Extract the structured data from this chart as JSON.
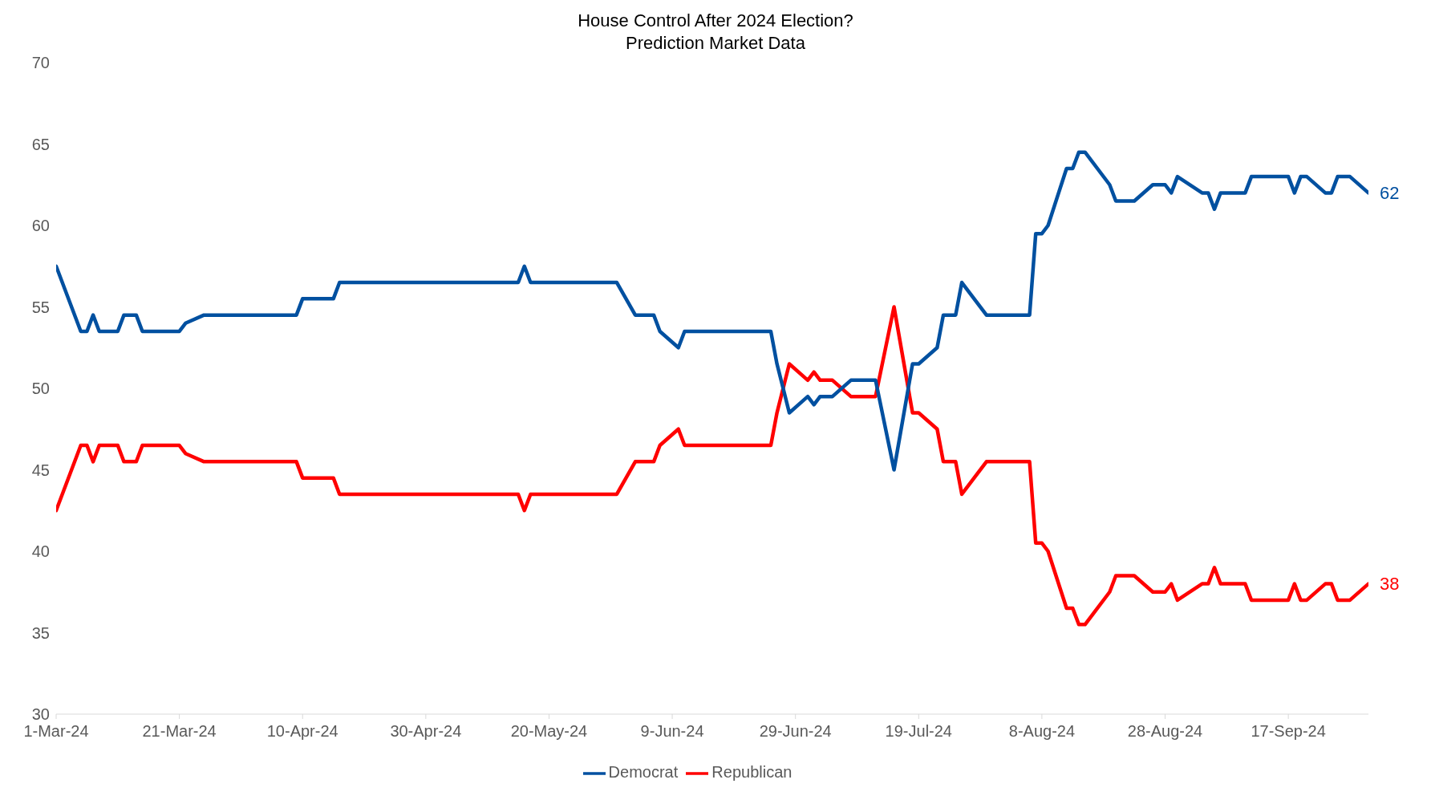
{
  "chart_data": {
    "type": "line",
    "title": "House Control After 2024 Election?",
    "subtitle": "Prediction Market Data",
    "x": [
      "2024-03-01",
      "2024-03-05",
      "2024-03-06",
      "2024-03-07",
      "2024-03-08",
      "2024-03-11",
      "2024-03-12",
      "2024-03-14",
      "2024-03-15",
      "2024-03-21",
      "2024-03-22",
      "2024-03-25",
      "2024-04-09",
      "2024-04-10",
      "2024-04-15",
      "2024-04-16",
      "2024-05-15",
      "2024-05-16",
      "2024-05-17",
      "2024-05-31",
      "2024-06-03",
      "2024-06-06",
      "2024-06-07",
      "2024-06-10",
      "2024-06-11",
      "2024-06-25",
      "2024-06-26",
      "2024-06-28",
      "2024-07-01",
      "2024-07-02",
      "2024-07-03",
      "2024-07-05",
      "2024-07-08",
      "2024-07-12",
      "2024-07-15",
      "2024-07-18",
      "2024-07-19",
      "2024-07-22",
      "2024-07-23",
      "2024-07-25",
      "2024-07-26",
      "2024-07-30",
      "2024-08-06",
      "2024-08-07",
      "2024-08-08",
      "2024-08-09",
      "2024-08-12",
      "2024-08-13",
      "2024-08-14",
      "2024-08-15",
      "2024-08-19",
      "2024-08-20",
      "2024-08-23",
      "2024-08-26",
      "2024-08-28",
      "2024-08-29",
      "2024-08-30",
      "2024-09-03",
      "2024-09-04",
      "2024-09-05",
      "2024-09-06",
      "2024-09-10",
      "2024-09-11",
      "2024-09-17",
      "2024-09-18",
      "2024-09-19",
      "2024-09-20",
      "2024-09-23",
      "2024-09-24",
      "2024-09-25",
      "2024-09-27",
      "2024-09-30"
    ],
    "series": [
      {
        "name": "Republican",
        "color": "#ff0000",
        "values": [
          42.5,
          46.5,
          46.5,
          45.5,
          46.5,
          46.5,
          45.5,
          45.5,
          46.5,
          46.5,
          46,
          45.5,
          45.5,
          44.5,
          44.5,
          43.5,
          43.5,
          42.5,
          43.5,
          43.5,
          45.5,
          45.5,
          46.5,
          47.5,
          46.5,
          46.5,
          48.5,
          51.5,
          50.5,
          51,
          50.5,
          50.5,
          49.5,
          49.5,
          55,
          48.5,
          48.5,
          47.5,
          45.5,
          45.5,
          43.5,
          45.5,
          45.5,
          40.5,
          40.5,
          40,
          36.5,
          36.5,
          35.5,
          35.5,
          37.5,
          38.5,
          38.5,
          37.5,
          37.5,
          38,
          37,
          38,
          38,
          39,
          38,
          38,
          37,
          37,
          38,
          37,
          37,
          38,
          38,
          37,
          37,
          38
        ]
      },
      {
        "name": "Democrat",
        "color": "#0050a0",
        "values": [
          57.5,
          53.5,
          53.5,
          54.5,
          53.5,
          53.5,
          54.5,
          54.5,
          53.5,
          53.5,
          54,
          54.5,
          54.5,
          55.5,
          55.5,
          56.5,
          56.5,
          57.5,
          56.5,
          56.5,
          54.5,
          54.5,
          53.5,
          52.5,
          53.5,
          53.5,
          51.5,
          48.5,
          49.5,
          49,
          49.5,
          49.5,
          50.5,
          50.5,
          45,
          51.5,
          51.5,
          52.5,
          54.5,
          54.5,
          56.5,
          54.5,
          54.5,
          59.5,
          59.5,
          60,
          63.5,
          63.5,
          64.5,
          64.5,
          62.5,
          61.5,
          61.5,
          62.5,
          62.5,
          62,
          63,
          62,
          62,
          61,
          62,
          62,
          63,
          63,
          62,
          63,
          63,
          62,
          62,
          63,
          63,
          62
        ]
      }
    ],
    "xlim": [
      "2024-03-01",
      "2024-09-30"
    ],
    "xticks": [
      {
        "value": "2024-03-01",
        "label": "1-Mar-24"
      },
      {
        "value": "2024-03-21",
        "label": "21-Mar-24"
      },
      {
        "value": "2024-04-10",
        "label": "10-Apr-24"
      },
      {
        "value": "2024-04-30",
        "label": "30-Apr-24"
      },
      {
        "value": "2024-05-20",
        "label": "20-May-24"
      },
      {
        "value": "2024-06-09",
        "label": "9-Jun-24"
      },
      {
        "value": "2024-06-29",
        "label": "29-Jun-24"
      },
      {
        "value": "2024-07-19",
        "label": "19-Jul-24"
      },
      {
        "value": "2024-08-08",
        "label": "8-Aug-24"
      },
      {
        "value": "2024-08-28",
        "label": "28-Aug-24"
      },
      {
        "value": "2024-09-17",
        "label": "17-Sep-24"
      }
    ],
    "ylim": [
      30,
      70
    ],
    "yticks": [
      30,
      35,
      40,
      45,
      50,
      55,
      60,
      65,
      70
    ],
    "annotations": [
      {
        "text": "38",
        "x": "2024-09-30",
        "y": 38
      },
      {
        "text": "62",
        "x": "2024-09-30",
        "y": 62
      }
    ],
    "grid": false,
    "legend": "bottom",
    "marker": "none",
    "line_style": "solid"
  }
}
